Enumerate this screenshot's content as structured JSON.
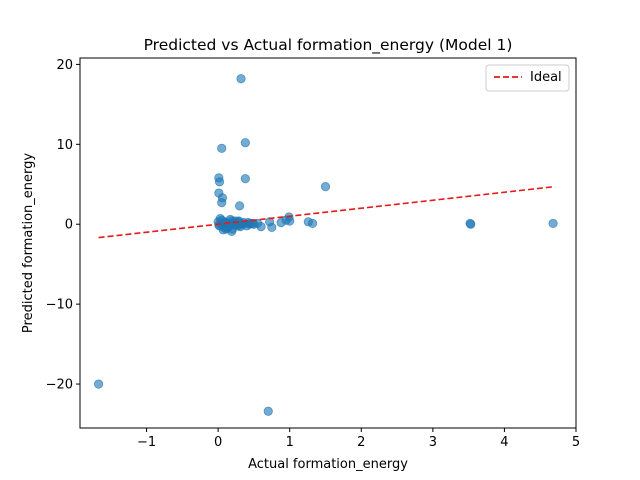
{
  "chart_data": {
    "type": "scatter",
    "title": "Predicted vs Actual formation_energy (Model 1)",
    "xlabel": "Actual formation_energy",
    "ylabel": "Predicted formation_energy",
    "xlim": [
      -1.93,
      5.0
    ],
    "ylim": [
      -25.5,
      20.8
    ],
    "xticks": [
      -1,
      0,
      1,
      2,
      3,
      4,
      5
    ],
    "yticks": [
      -20,
      -10,
      0,
      10,
      20
    ],
    "grid": false,
    "legend": {
      "placement": "top-right",
      "entries": [
        "Ideal"
      ]
    },
    "colors": {
      "points": "#1f77b4",
      "ideal_line": "#e41a1c",
      "axes": "#000000"
    },
    "series": [
      {
        "kind": "scatter",
        "x": [
          0.32,
          0.38,
          0.05,
          0.01,
          0.02,
          0.01,
          0.06,
          0.05,
          0.38,
          0.3,
          1.5,
          -1.67,
          0.7,
          0.0,
          0.02,
          0.05,
          0.08,
          0.1,
          0.12,
          0.15,
          0.18,
          0.2,
          0.22,
          0.25,
          0.28,
          0.3,
          0.33,
          0.36,
          0.4,
          0.45,
          0.5,
          0.55,
          0.6,
          0.72,
          0.75,
          0.88,
          0.95,
          0.99,
          1.0,
          1.26,
          1.32,
          0.03,
          0.07,
          0.13,
          0.17,
          0.24,
          0.27,
          0.35,
          0.42,
          0.48,
          0.01,
          0.04,
          0.09,
          0.11,
          0.16,
          0.19,
          0.23,
          0.29,
          0.31,
          0.44,
          3.52,
          3.53,
          4.68
        ],
        "y": [
          18.2,
          10.2,
          9.5,
          5.8,
          5.3,
          3.9,
          3.3,
          2.7,
          5.7,
          2.3,
          4.7,
          -20.0,
          -23.4,
          0.3,
          -0.2,
          0.5,
          -0.4,
          0.2,
          0.1,
          -0.3,
          0.4,
          -0.6,
          0.2,
          0.0,
          0.3,
          -0.1,
          0.1,
          0.2,
          -0.2,
          0.1,
          0.0,
          0.1,
          -0.3,
          0.3,
          -0.4,
          0.2,
          0.5,
          0.9,
          0.4,
          0.3,
          0.1,
          0.7,
          -0.7,
          -0.5,
          0.6,
          0.4,
          -0.2,
          0.0,
          0.2,
          0.1,
          -0.1,
          0.0,
          0.3,
          -0.6,
          0.1,
          -0.9,
          0.0,
          0.4,
          -0.3,
          0.0,
          0.1,
          0.0,
          0.1
        ]
      },
      {
        "kind": "line",
        "name": "Ideal",
        "x": [
          -1.67,
          4.68
        ],
        "y": [
          -1.67,
          4.68
        ]
      }
    ]
  }
}
